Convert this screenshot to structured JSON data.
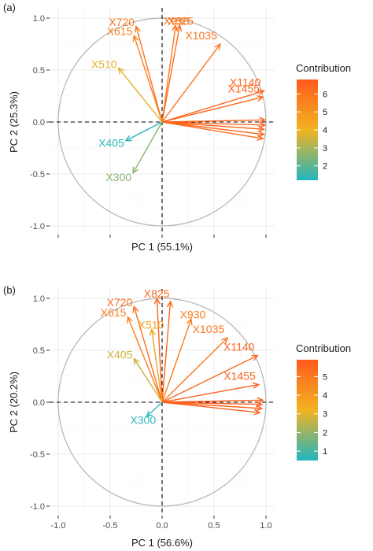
{
  "colors": {
    "low": "#22b5bf",
    "mid": "#f2b321",
    "high": "#ff5a1c",
    "circle": "#b3b3b3",
    "grid_major": "#ebebeb",
    "grid_minor": "#f5f5f5"
  },
  "chart_data": [
    {
      "type": "scatter",
      "subtype": "pca-variable-correlation-circle",
      "panel_label": "(a)",
      "xlabel": "PC 1 (55.1%)",
      "ylabel": "PC 2 (25.3%)",
      "xlim": [
        -1,
        1
      ],
      "ylim": [
        -1,
        1
      ],
      "x_ticks": [],
      "y_ticks": [
        "-1.0",
        "-0.5",
        "0.0",
        "0.5",
        "1.0"
      ],
      "grid": true,
      "legend": {
        "title": "Contribution",
        "placement": "right",
        "min": 1.2,
        "max": 6.8,
        "ticks": [
          2,
          3,
          4,
          5,
          6
        ]
      },
      "variables": [
        {
          "name": "X720",
          "x": -0.25,
          "y": 0.92,
          "contribution": 6.0
        },
        {
          "name": "X615",
          "x": -0.27,
          "y": 0.83,
          "contribution": 5.6
        },
        {
          "name": "X930",
          "x": 0.13,
          "y": 0.93,
          "contribution": 5.9
        },
        {
          "name": "X825",
          "x": 0.17,
          "y": 0.93,
          "contribution": 6.1
        },
        {
          "name": "X510",
          "x": -0.42,
          "y": 0.52,
          "contribution": 3.8
        },
        {
          "name": "X1035",
          "x": 0.56,
          "y": 0.75,
          "contribution": 6.0
        },
        {
          "name": "X1140",
          "x": 0.98,
          "y": 0.3,
          "contribution": 6.5
        },
        {
          "name": "X1455",
          "x": 0.97,
          "y": 0.24,
          "contribution": 6.4
        },
        {
          "name": "",
          "x": 0.99,
          "y": 0.02,
          "contribution": 6.5
        },
        {
          "name": "",
          "x": 0.99,
          "y": -0.03,
          "contribution": 6.5
        },
        {
          "name": "",
          "x": 0.98,
          "y": -0.07,
          "contribution": 6.4
        },
        {
          "name": "",
          "x": 0.98,
          "y": -0.12,
          "contribution": 6.4
        },
        {
          "name": "",
          "x": 0.97,
          "y": -0.16,
          "contribution": 6.3
        },
        {
          "name": "X405",
          "x": -0.35,
          "y": -0.18,
          "contribution": 1.3
        },
        {
          "name": "X300",
          "x": -0.28,
          "y": -0.49,
          "contribution": 2.6
        }
      ]
    },
    {
      "type": "scatter",
      "subtype": "pca-variable-correlation-circle",
      "panel_label": "(b)",
      "xlabel": "PC 1 (56.6%)",
      "ylabel": "PC 2 (20.2%)",
      "xlim": [
        -1,
        1
      ],
      "ylim": [
        -1,
        1
      ],
      "x_ticks": [
        "-1.0",
        "-0.5",
        "0.0",
        "0.5",
        "1.0"
      ],
      "y_ticks": [
        "-1.0",
        "-0.5",
        "0.0",
        "0.5",
        "1.0"
      ],
      "grid": true,
      "legend": {
        "title": "Contribution",
        "placement": "right",
        "min": 0.5,
        "max": 5.9,
        "ticks": [
          1,
          2,
          3,
          4,
          5
        ]
      },
      "variables": [
        {
          "name": "X720",
          "x": -0.27,
          "y": 0.92,
          "contribution": 5.3
        },
        {
          "name": "X615",
          "x": -0.33,
          "y": 0.82,
          "contribution": 4.8
        },
        {
          "name": "X825",
          "x": -0.05,
          "y": 1.0,
          "contribution": 5.6
        },
        {
          "name": "",
          "x": 0.08,
          "y": 0.97,
          "contribution": 5.5
        },
        {
          "name": "X510",
          "x": -0.1,
          "y": 0.7,
          "contribution": 3.7
        },
        {
          "name": "X405",
          "x": -0.27,
          "y": 0.42,
          "contribution": 2.7
        },
        {
          "name": "X930",
          "x": 0.28,
          "y": 0.8,
          "contribution": 4.9
        },
        {
          "name": "X1035",
          "x": 0.63,
          "y": 0.62,
          "contribution": 5.0
        },
        {
          "name": "X1140",
          "x": 0.92,
          "y": 0.45,
          "contribution": 5.6
        },
        {
          "name": "X1455",
          "x": 0.93,
          "y": 0.17,
          "contribution": 5.7
        },
        {
          "name": "",
          "x": 0.97,
          "y": 0.02,
          "contribution": 5.8
        },
        {
          "name": "",
          "x": 0.96,
          "y": -0.02,
          "contribution": 5.8
        },
        {
          "name": "",
          "x": 0.96,
          "y": -0.06,
          "contribution": 5.7
        },
        {
          "name": "",
          "x": 0.94,
          "y": -0.1,
          "contribution": 5.7
        },
        {
          "name": "X300",
          "x": -0.15,
          "y": -0.14,
          "contribution": 0.6
        }
      ]
    }
  ]
}
